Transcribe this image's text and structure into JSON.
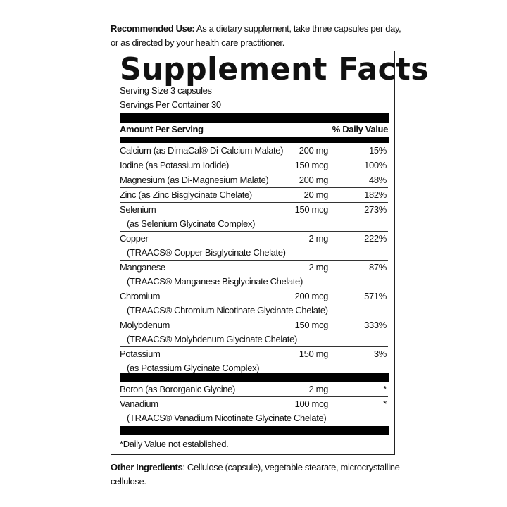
{
  "recommended_use": {
    "label": "Recommended Use:",
    "text": " As a dietary supplement, take three capsules per day, or as directed by your health care practitioner."
  },
  "facts": {
    "title": "Supplement Facts",
    "serving_size": "Serving Size 3 capsules",
    "servings_per_container": "Servings Per Container 30",
    "header_amount": "Amount Per Serving",
    "header_dv": "% Daily Value",
    "group1": [
      {
        "name": "Calcium (as DimaCal® Di-Calcium Malate)",
        "amount": "200 mg",
        "dv": "15%"
      },
      {
        "name": "Iodine (as Potassium Iodide)",
        "amount": "150 mcg",
        "dv": "100%"
      },
      {
        "name": "Magnesium (as Di-Magnesium Malate)",
        "amount": "200 mg",
        "dv": "48%"
      },
      {
        "name": "Zinc (as Zinc Bisglycinate Chelate)",
        "amount": "20 mg",
        "dv": "182%"
      },
      {
        "name": "Selenium",
        "sub": "(as Selenium Glycinate Complex)",
        "amount": "150 mcg",
        "dv": "273%"
      },
      {
        "name": "Copper",
        "sub": "(TRAACS® Copper Bisglycinate Chelate)",
        "amount": "2 mg",
        "dv": "222%"
      },
      {
        "name": "Manganese",
        "sub": "(TRAACS® Manganese Bisglycinate Chelate)",
        "amount": "2 mg",
        "dv": "87%"
      },
      {
        "name": "Chromium",
        "sub": "(TRAACS® Chromium Nicotinate Glycinate Chelate)",
        "amount": "200 mcg",
        "dv": "571%"
      },
      {
        "name": "Molybdenum",
        "sub": "(TRAACS® Molybdenum Glycinate Chelate)",
        "amount": "150 mcg",
        "dv": "333%"
      },
      {
        "name": "Potassium",
        "sub": "(as Potassium Glycinate Complex)",
        "amount": "150 mg",
        "dv": "3%"
      }
    ],
    "group2": [
      {
        "name": "Boron (as Bororganic Glycine)",
        "amount": "2 mg",
        "dv": "*"
      },
      {
        "name": "Vanadium",
        "sub": "(TRAACS® Vanadium Nicotinate Glycinate Chelate)",
        "amount": "100 mcg",
        "dv": "*"
      }
    ],
    "footnote": "*Daily Value not established."
  },
  "other_ingredients": {
    "label": "Other Ingredients",
    "text": ": Cellulose (capsule), vegetable stearate, microcrystalline cellulose."
  }
}
